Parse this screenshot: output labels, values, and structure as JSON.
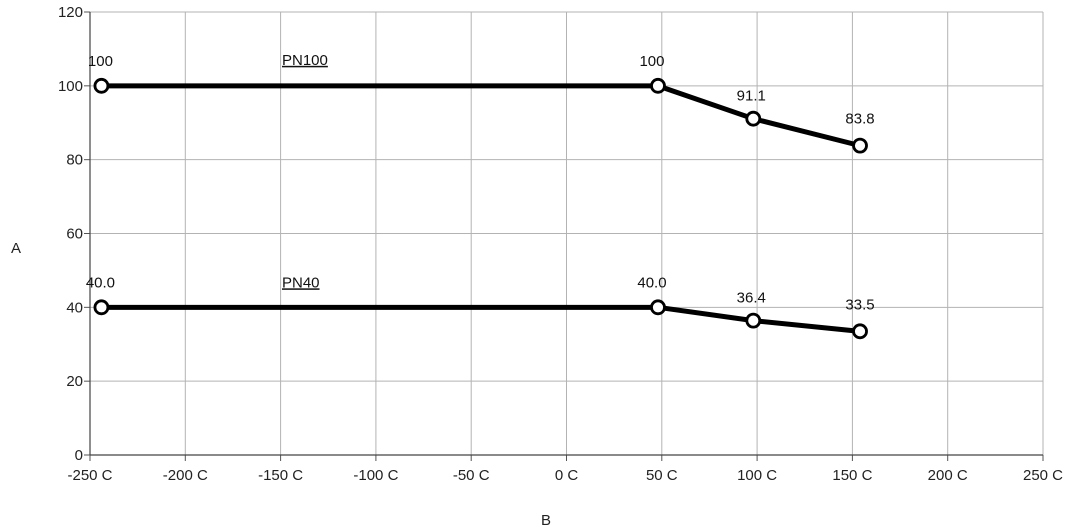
{
  "chart_data": {
    "type": "line",
    "title": "",
    "xlabel": "B",
    "ylabel": "A",
    "xlim": [
      -250,
      250
    ],
    "ylim": [
      0,
      120
    ],
    "x_ticks": [
      -250,
      -200,
      -150,
      -100,
      -50,
      0,
      50,
      100,
      150,
      200,
      250
    ],
    "x_tick_labels": [
      "-250 C",
      "-200 C",
      "-150 C",
      "-100 C",
      "-50 C",
      "0 C",
      "50 C",
      "100 C",
      "150 C",
      "200 C",
      "250 C"
    ],
    "y_ticks": [
      0,
      20,
      40,
      60,
      80,
      100,
      120
    ],
    "y_tick_labels": [
      "0",
      "20",
      "40",
      "60",
      "80",
      "100",
      "120"
    ],
    "grid": true,
    "series": [
      {
        "name": "PN100",
        "x": [
          -244,
          48,
          98,
          154
        ],
        "y": [
          100,
          100,
          91.1,
          83.8
        ],
        "labels": [
          "100",
          "100",
          "91.1",
          "83.8"
        ]
      },
      {
        "name": "PN40",
        "x": [
          -244,
          48,
          98,
          154
        ],
        "y": [
          40.0,
          40.0,
          36.4,
          33.5
        ],
        "labels": [
          "40.0",
          "40.0",
          "36.4",
          "33.5"
        ]
      }
    ],
    "line_color": "#000000",
    "grid_color": "#b3b3b3"
  }
}
